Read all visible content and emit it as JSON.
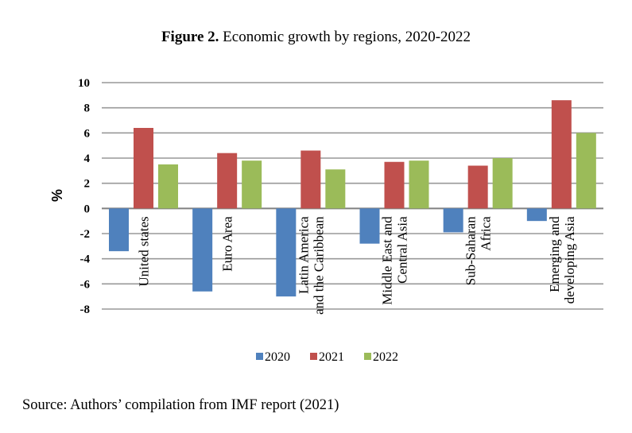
{
  "chart_data": {
    "type": "bar",
    "title_bold": "Figure 2.",
    "title_rest": " Economic growth by regions, 2020-2022",
    "xlabel": "",
    "ylabel": "%",
    "ylim": [
      -8,
      10
    ],
    "ytick_step": 2,
    "yticks": [
      "10",
      "8",
      "6",
      "4",
      "2",
      "0",
      "-2",
      "-4",
      "-6",
      "-8"
    ],
    "grid": true,
    "legend_position": "bottom-center",
    "categories": [
      [
        "United states"
      ],
      [
        "Euro Area"
      ],
      [
        "Latin America",
        "and the Caribbean"
      ],
      [
        "Middle East and",
        "Central Asia"
      ],
      [
        "Sub-Saharan",
        "Africa"
      ],
      [
        "Emerging and",
        "developing Asia"
      ]
    ],
    "series": [
      {
        "name": "2020",
        "color": "#4f81bd",
        "values": [
          -3.4,
          -6.6,
          -7.0,
          -2.8,
          -1.9,
          -1.0
        ]
      },
      {
        "name": "2021",
        "color": "#c0504d",
        "values": [
          6.4,
          4.4,
          4.6,
          3.7,
          3.4,
          8.6
        ]
      },
      {
        "name": "2022",
        "color": "#9bbb59",
        "values": [
          3.5,
          3.8,
          3.1,
          3.8,
          4.0,
          6.0
        ]
      }
    ]
  },
  "source": "Source: Authors’ compilation from IMF report (2021)"
}
